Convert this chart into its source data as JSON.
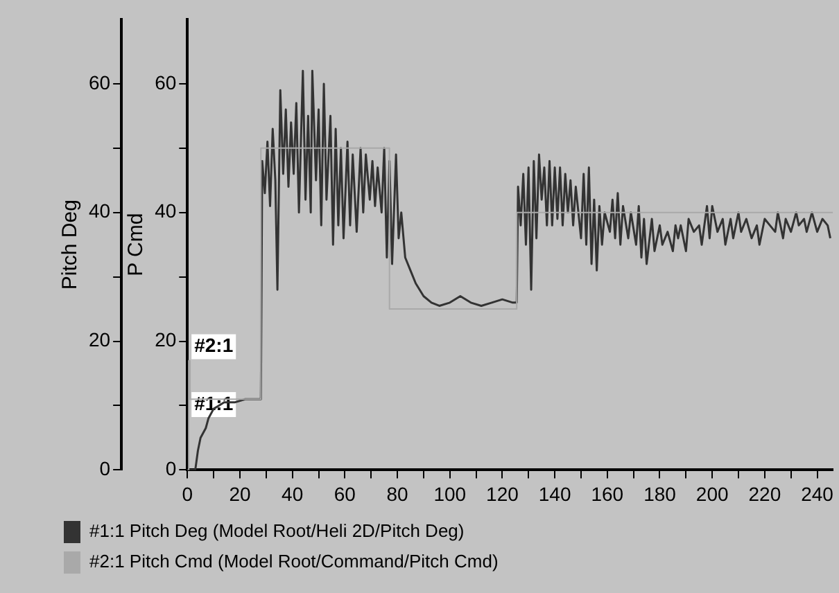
{
  "chart_data": {
    "type": "line",
    "ylabel": "Pitch Deg",
    "y2label": "P Cmd",
    "xlim": [
      0,
      246
    ],
    "xticks": [
      0,
      {
        "value": 10,
        "label": null
      },
      20,
      {
        "value": 30,
        "label": null
      },
      40,
      {
        "value": 50,
        "label": null
      },
      60,
      {
        "value": 70,
        "label": null
      },
      80,
      {
        "value": 90,
        "label": null
      },
      100,
      {
        "value": 110,
        "label": null
      },
      120,
      {
        "value": 130,
        "label": null
      },
      140,
      {
        "value": 150,
        "label": null
      },
      160,
      {
        "value": 170,
        "label": null
      },
      180,
      {
        "value": 190,
        "label": null
      },
      200,
      {
        "value": 210,
        "label": null
      },
      220,
      {
        "value": 230,
        "label": null
      },
      240
    ],
    "ylim": [
      0,
      70
    ],
    "yticks": [
      0,
      {
        "value": 10,
        "label": null
      },
      20,
      {
        "value": 30,
        "label": null
      },
      40,
      {
        "value": 50,
        "label": null
      },
      60
    ],
    "y2lim": [
      0,
      70
    ],
    "y2ticks": [
      0,
      {
        "value": 10,
        "label": null
      },
      20,
      {
        "value": 30,
        "label": null
      },
      40,
      {
        "value": 50,
        "label": null
      },
      60
    ],
    "grid": false,
    "legend": "bottom left",
    "marker": "none",
    "line_style": "solid",
    "annotations": [
      {
        "text": "#2:1",
        "x": 0.5,
        "y": 17
      },
      {
        "text": "#1:1",
        "x": 0.5,
        "y": 8
      }
    ],
    "series": [
      {
        "name": "#1:1 Pitch Deg (Model Root/Heli 2D/Pitch Deg)",
        "color": "#333333",
        "x": [
          0,
          3,
          4,
          5,
          7,
          8,
          10,
          12,
          14,
          18,
          22,
          26,
          28,
          28.5,
          29.5,
          30.5,
          31.5,
          32.5,
          33.5,
          34.3,
          35.4,
          36.5,
          37.5,
          38.5,
          39.5,
          40.5,
          41.5,
          42.5,
          44,
          45,
          46,
          47,
          47.6,
          49,
          50,
          51,
          52,
          53,
          54.5,
          55.5,
          56.5,
          57.5,
          58.5,
          59.5,
          61,
          62,
          63,
          64.5,
          66,
          67,
          68,
          69.5,
          70.5,
          71.5,
          72.5,
          74,
          75,
          76,
          77,
          78,
          79.5,
          80.5,
          81.5,
          83,
          85,
          87,
          90,
          93,
          96,
          100,
          104,
          108,
          112,
          116,
          120,
          124,
          125.5,
          126,
          127,
          128,
          129,
          130,
          131,
          132,
          133,
          134,
          135,
          136,
          137,
          138,
          139,
          140,
          141,
          142,
          143,
          144,
          145,
          146,
          147,
          148,
          150,
          151,
          152,
          153,
          154,
          155,
          156,
          157,
          158,
          159,
          161,
          162,
          163,
          164,
          165,
          166,
          168,
          169,
          171,
          172,
          173,
          174,
          175,
          177,
          178,
          180,
          181,
          183,
          185,
          186,
          187,
          188,
          190,
          191,
          193,
          195,
          196,
          198,
          199,
          200,
          202,
          204,
          205,
          207,
          208,
          210,
          211,
          213,
          215,
          217,
          218,
          220,
          222,
          224,
          225,
          227,
          228,
          230,
          232,
          233,
          235,
          236,
          238,
          240,
          242,
          244,
          245
        ],
        "values": [
          0,
          0,
          3,
          5,
          6.5,
          8,
          9.5,
          10,
          10.5,
          10.5,
          11,
          11,
          11,
          48,
          43,
          51,
          41,
          53,
          45,
          28,
          59,
          46,
          56,
          44,
          54,
          46,
          57,
          40,
          62,
          42,
          55,
          40,
          62,
          45,
          56,
          38,
          60,
          42,
          55,
          35,
          53,
          38,
          50,
          36,
          51,
          38,
          49,
          37,
          50,
          40,
          49,
          42,
          48,
          41,
          47,
          40,
          50,
          33,
          48,
          32,
          49,
          36,
          40,
          33,
          31,
          29,
          27,
          26,
          25.5,
          26,
          27,
          26,
          25.5,
          26,
          26.5,
          26,
          26,
          44,
          38,
          46,
          35,
          47,
          28,
          48,
          36,
          49,
          42,
          47,
          38,
          48,
          38,
          47,
          39,
          47,
          38,
          46,
          40,
          45,
          38,
          44,
          36,
          46,
          35,
          47,
          32,
          42,
          31,
          41,
          35,
          40,
          37,
          42,
          36,
          43,
          35,
          41,
          36,
          40,
          35,
          41,
          33,
          39,
          32,
          39,
          34,
          38,
          35,
          37,
          34,
          38,
          36,
          38,
          34,
          39,
          37,
          38,
          35,
          41,
          36,
          41,
          37,
          39,
          35,
          39,
          36,
          40,
          37,
          39,
          36,
          38,
          35,
          39,
          38,
          37,
          40,
          36,
          39,
          37,
          40,
          38,
          39,
          37,
          40,
          37,
          39,
          38,
          36
        ]
      },
      {
        "name": "#2:1 Pitch Cmd (Model Root/Command/Pitch Cmd)",
        "color": "#a9a9a9",
        "type": "step",
        "axis": "y2",
        "x": [
          0,
          0.5,
          1,
          28,
          77,
          125.5,
          246
        ],
        "values": [
          0,
          17,
          11,
          50,
          25,
          40,
          40
        ]
      }
    ]
  }
}
